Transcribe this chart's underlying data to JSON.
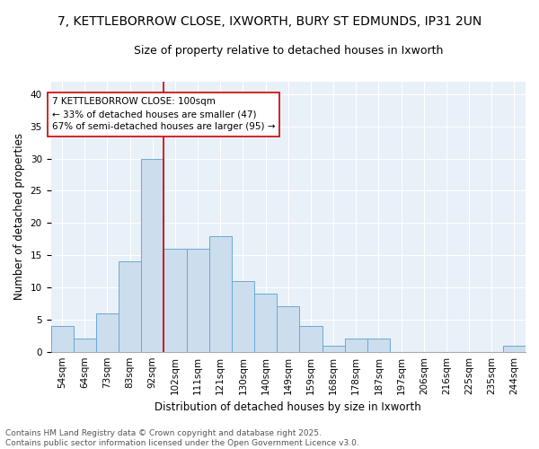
{
  "title_line1": "7, KETTLEBORROW CLOSE, IXWORTH, BURY ST EDMUNDS, IP31 2UN",
  "title_line2": "Size of property relative to detached houses in Ixworth",
  "xlabel": "Distribution of detached houses by size in Ixworth",
  "ylabel": "Number of detached properties",
  "categories": [
    "54sqm",
    "64sqm",
    "73sqm",
    "83sqm",
    "92sqm",
    "102sqm",
    "111sqm",
    "121sqm",
    "130sqm",
    "140sqm",
    "149sqm",
    "159sqm",
    "168sqm",
    "178sqm",
    "187sqm",
    "197sqm",
    "206sqm",
    "216sqm",
    "225sqm",
    "235sqm",
    "244sqm"
  ],
  "values": [
    4,
    2,
    6,
    14,
    30,
    16,
    16,
    18,
    11,
    9,
    7,
    4,
    1,
    2,
    2,
    0,
    0,
    0,
    0,
    0,
    1
  ],
  "bar_color": "#ccdded",
  "bar_edge_color": "#6aaad4",
  "background_color": "#e8f0f8",
  "grid_color": "#ffffff",
  "vline_x": 4.5,
  "vline_color": "#cc0000",
  "annotation_line1": "7 KETTLEBORROW CLOSE: 100sqm",
  "annotation_line2": "← 33% of detached houses are smaller (47)",
  "annotation_line3": "67% of semi-detached houses are larger (95) →",
  "annotation_box_color": "#ffffff",
  "annotation_box_edge_color": "#cc0000",
  "ylim": [
    0,
    42
  ],
  "yticks": [
    0,
    5,
    10,
    15,
    20,
    25,
    30,
    35,
    40
  ],
  "footer_line1": "Contains HM Land Registry data © Crown copyright and database right 2025.",
  "footer_line2": "Contains public sector information licensed under the Open Government Licence v3.0.",
  "title_fontsize": 10,
  "subtitle_fontsize": 9,
  "axis_label_fontsize": 8.5,
  "tick_fontsize": 7.5,
  "annotation_fontsize": 7.5,
  "footer_fontsize": 6.5
}
